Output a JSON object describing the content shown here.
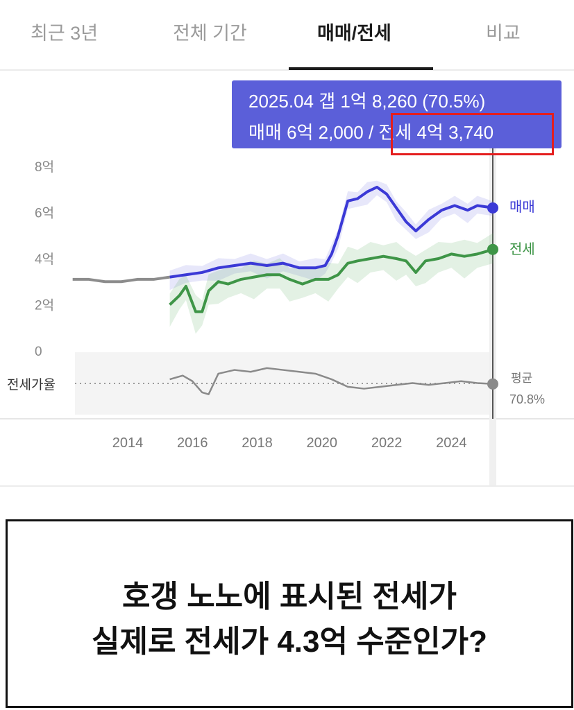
{
  "tabs": [
    {
      "label": "최근 3년"
    },
    {
      "label": "전체 기간"
    },
    {
      "label": "매매/전세",
      "active": true
    },
    {
      "label": "비교"
    }
  ],
  "tooltip": {
    "line1": "2025.04  갭 1억 8,260 (70.5%)",
    "line2": "매매 6억 2,000 / 전세 4억 3,740"
  },
  "caption": {
    "line1": "호갱 노노에 표시된 전세가",
    "line2": "실제로 전세가 4.3억 수준인가?"
  },
  "colors": {
    "sale": "#3b39d6",
    "jeonse": "#3e9547",
    "pre": "#8c8c8c",
    "ratio": "#8a8a8a",
    "tooltip_bg": "#5b5fd9",
    "highlight": "#e41e1e"
  },
  "chart_data": [
    {
      "type": "line",
      "y_ticks": [
        "8억",
        "6억",
        "4억",
        "2억",
        "0"
      ],
      "y_tick_values": [
        8,
        6,
        4,
        2,
        0
      ],
      "x_ticks": [
        "2014",
        "2016",
        "2018",
        "2020",
        "2022",
        "2024"
      ],
      "x_tick_values": [
        2014,
        2016,
        2018,
        2020,
        2022,
        2024
      ],
      "xlim": [
        2012.2,
        2025.6
      ],
      "ylim": [
        0,
        8
      ],
      "series": [
        {
          "name": "매매",
          "color": "#3b39d6",
          "x": [
            2015.3,
            2015.8,
            2016.3,
            2016.8,
            2017.3,
            2017.8,
            2018.3,
            2018.8,
            2019.3,
            2019.8,
            2020.1,
            2020.3,
            2020.5,
            2020.8,
            2021.1,
            2021.4,
            2021.7,
            2022.0,
            2022.3,
            2022.6,
            2022.9,
            2023.3,
            2023.7,
            2024.1,
            2024.5,
            2024.8,
            2025.3
          ],
          "y": [
            3.2,
            3.3,
            3.4,
            3.6,
            3.7,
            3.8,
            3.7,
            3.8,
            3.6,
            3.6,
            3.7,
            4.2,
            5.0,
            6.5,
            6.6,
            6.9,
            7.1,
            6.8,
            6.2,
            5.6,
            5.2,
            5.7,
            6.1,
            6.3,
            6.1,
            6.3,
            6.2
          ]
        },
        {
          "name": "전세",
          "color": "#3e9547",
          "x": [
            2015.3,
            2015.6,
            2015.8,
            2016.1,
            2016.3,
            2016.5,
            2016.8,
            2017.1,
            2017.5,
            2017.9,
            2018.3,
            2018.7,
            2019.0,
            2019.4,
            2019.8,
            2020.2,
            2020.5,
            2020.8,
            2021.1,
            2021.5,
            2021.9,
            2022.3,
            2022.6,
            2022.9,
            2023.2,
            2023.6,
            2024.0,
            2024.4,
            2024.8,
            2025.3
          ],
          "y": [
            2.0,
            2.4,
            2.8,
            1.7,
            1.7,
            2.6,
            3.0,
            2.9,
            3.1,
            3.2,
            3.3,
            3.3,
            3.1,
            2.9,
            3.1,
            3.1,
            3.3,
            3.8,
            3.9,
            4.0,
            4.1,
            4.0,
            3.9,
            3.4,
            3.9,
            4.0,
            4.2,
            4.1,
            4.2,
            4.4
          ]
        },
        {
          "name": "",
          "color": "#8c8c8c",
          "x": [
            2012.3,
            2012.8,
            2013.3,
            2013.8,
            2014.3,
            2014.8,
            2015.3
          ],
          "y": [
            3.1,
            3.1,
            3.0,
            3.0,
            3.1,
            3.1,
            3.2
          ]
        }
      ],
      "end_labels": {
        "sale": "매매",
        "jeonse": "전세"
      }
    },
    {
      "type": "line",
      "title": "전세가율",
      "average_label": "평균",
      "average_value": "70.8%",
      "series": [
        {
          "name": "전세가율",
          "color": "#8a8a8a",
          "x": [
            2015.3,
            2015.7,
            2016.0,
            2016.3,
            2016.5,
            2016.8,
            2017.3,
            2017.8,
            2018.3,
            2018.8,
            2019.3,
            2019.8,
            2020.3,
            2020.8,
            2021.3,
            2021.8,
            2022.3,
            2022.8,
            2023.3,
            2023.8,
            2024.3,
            2024.8,
            2025.3
          ],
          "y": [
            73,
            75,
            72,
            66,
            65,
            76,
            78,
            77,
            79,
            78,
            77,
            76,
            73,
            69,
            68,
            69,
            70,
            71,
            70,
            71,
            72,
            71,
            70.5
          ]
        }
      ]
    }
  ]
}
